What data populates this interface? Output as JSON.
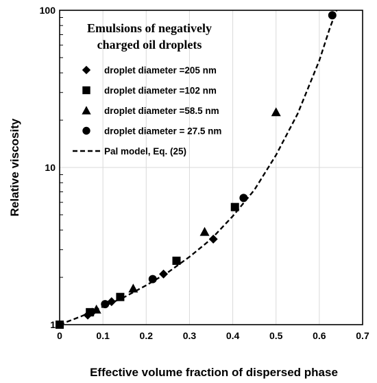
{
  "chart_data": {
    "type": "scatter",
    "xlabel": "Effective volume fraction of dispersed phase",
    "ylabel": "Relative viscosity",
    "xlim": [
      0,
      0.7
    ],
    "ylim": [
      1,
      100
    ],
    "y_scale": "log",
    "grid": true,
    "x_ticks": [
      "0",
      "0.1",
      "0.2",
      "0.3",
      "0.4",
      "0.5",
      "0.6",
      "0.7"
    ],
    "y_ticks": [
      "1",
      "10",
      "100"
    ],
    "legend": {
      "placement": "top-left",
      "title_line1": "Emulsions of negatively",
      "title_line2": "charged oil droplets"
    },
    "series": [
      {
        "name": "droplet diameter =205 nm",
        "marker": "diamond",
        "x": [
          0.065,
          0.075,
          0.12,
          0.24,
          0.355
        ],
        "y": [
          1.15,
          1.2,
          1.4,
          2.1,
          3.5
        ]
      },
      {
        "name": "droplet diameter =102 nm",
        "marker": "square",
        "x": [
          0.0,
          0.07,
          0.14,
          0.27,
          0.405
        ],
        "y": [
          1.0,
          1.2,
          1.5,
          2.55,
          5.6
        ]
      },
      {
        "name": "droplet diameter =58.5 nm",
        "marker": "triangle",
        "x": [
          0.085,
          0.17,
          0.335,
          0.5
        ],
        "y": [
          1.25,
          1.7,
          3.9,
          22.5
        ]
      },
      {
        "name": "droplet diameter = 27.5 nm",
        "marker": "circle",
        "x": [
          0.105,
          0.215,
          0.425,
          0.63
        ],
        "y": [
          1.35,
          1.95,
          6.4,
          93
        ]
      },
      {
        "name": "Pal model, Eq. (25)",
        "marker": "dashed-line",
        "x": [
          0.0,
          0.05,
          0.1,
          0.15,
          0.2,
          0.25,
          0.3,
          0.35,
          0.4,
          0.45,
          0.5,
          0.55,
          0.6,
          0.625,
          0.64
        ],
        "y": [
          1.0,
          1.13,
          1.3,
          1.5,
          1.78,
          2.15,
          2.7,
          3.5,
          4.9,
          7.2,
          12.0,
          22.0,
          48.0,
          78.0,
          100.0
        ]
      }
    ]
  }
}
